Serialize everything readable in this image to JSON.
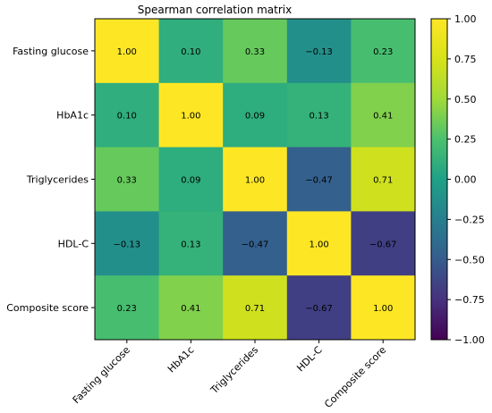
{
  "chart_data": {
    "type": "heatmap",
    "title": "Spearman correlation matrix",
    "row_labels": [
      "Fasting glucose",
      "HbA1c",
      "Triglycerides",
      "HDL-C",
      "Composite score"
    ],
    "col_labels": [
      "Fasting glucose",
      "HbA1c",
      "Triglycerides",
      "HDL-C",
      "Composite score"
    ],
    "values": [
      [
        1.0,
        0.1,
        0.33,
        -0.13,
        0.23
      ],
      [
        0.1,
        1.0,
        0.09,
        0.13,
        0.41
      ],
      [
        0.33,
        0.09,
        1.0,
        -0.47,
        0.71
      ],
      [
        -0.13,
        0.13,
        -0.47,
        1.0,
        -0.67
      ],
      [
        0.23,
        0.41,
        0.71,
        -0.67,
        1.0
      ]
    ],
    "cell_labels": [
      [
        "1.00",
        "0.10",
        "0.33",
        "−0.13",
        "0.23"
      ],
      [
        "0.10",
        "1.00",
        "0.09",
        "0.13",
        "0.41"
      ],
      [
        "0.33",
        "0.09",
        "1.00",
        "−0.47",
        "0.71"
      ],
      [
        "−0.13",
        "0.13",
        "−0.47",
        "1.00",
        "−0.67"
      ],
      [
        "0.23",
        "0.41",
        "0.71",
        "−0.67",
        "1.00"
      ]
    ],
    "colormap": "viridis",
    "vmin": -1.0,
    "vmax": 1.0,
    "colorbar_ticks": [
      1.0,
      0.75,
      0.5,
      0.25,
      0.0,
      -0.25,
      -0.5,
      -0.75,
      -1.0
    ],
    "colorbar_tick_labels": [
      "1.00",
      "0.75",
      "0.50",
      "0.25",
      "0.00",
      "−0.25",
      "−0.50",
      "−0.75",
      "−1.00"
    ],
    "xtick_rotation": "45 degrees",
    "grid": false,
    "legend": "colorbar right"
  }
}
